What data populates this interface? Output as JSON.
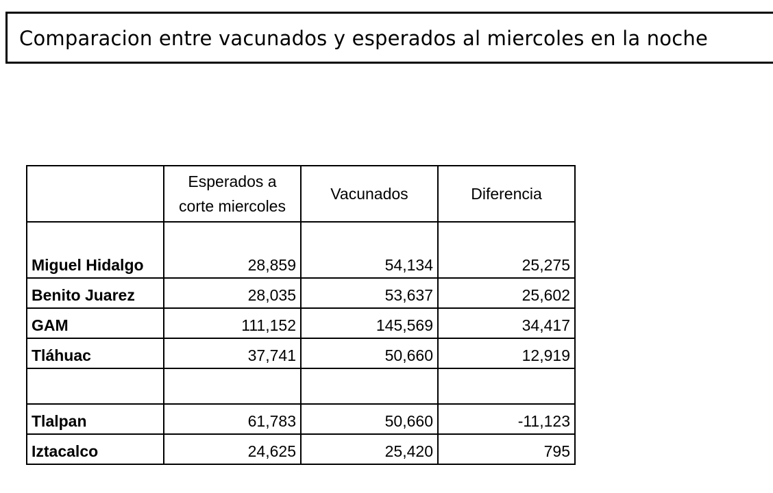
{
  "title": "Comparacion entre vacunados y esperados al miercoles en la noche",
  "table": {
    "headers": [
      "",
      "Esperados a corte miercoles",
      "Vacunados",
      "Diferencia"
    ],
    "rows": [
      {
        "label": "Miguel Hidalgo",
        "esperados": "28,859",
        "vacunados": "54,134",
        "diferencia": "25,275"
      },
      {
        "label": "Benito Juarez",
        "esperados": "28,035",
        "vacunados": "53,637",
        "diferencia": "25,602"
      },
      {
        "label": "GAM",
        "esperados": "111,152",
        "vacunados": "145,569",
        "diferencia": "34,417"
      },
      {
        "label": "Tláhuac",
        "esperados": "37,741",
        "vacunados": "50,660",
        "diferencia": "12,919"
      },
      {
        "label": "",
        "esperados": "",
        "vacunados": "",
        "diferencia": ""
      },
      {
        "label": "Tlalpan",
        "esperados": "61,783",
        "vacunados": "50,660",
        "diferencia": "-11,123"
      },
      {
        "label": "Iztacalco",
        "esperados": "24,625",
        "vacunados": "25,420",
        "diferencia": "795"
      }
    ]
  }
}
